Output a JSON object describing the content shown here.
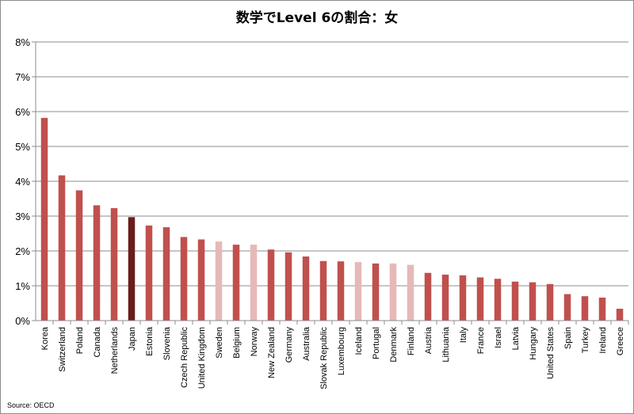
{
  "chart_data": {
    "type": "bar",
    "title": "数学でLevel 6の割合：女",
    "xlabel": "",
    "ylabel": "",
    "ylim": [
      0,
      8
    ],
    "y_tick_labels": [
      "0%",
      "1%",
      "2%",
      "3%",
      "4%",
      "5%",
      "6%",
      "7%",
      "8%"
    ],
    "y_unit": "%",
    "grid": true,
    "legend": "none",
    "categories": [
      "Korea",
      "Switzerland",
      "Poland",
      "Canada",
      "Netherlands",
      "Japan",
      "Estonia",
      "Slovenia",
      "Czech Republic",
      "United Kingdom",
      "Sweden",
      "Belgium",
      "Norway",
      "New Zealand",
      "Germany",
      "Australia",
      "Slovak Republic",
      "Luxembourg",
      "Iceland",
      "Portugal",
      "Denmark",
      "Finland",
      "Austria",
      "Lithuania",
      "Italy",
      "France",
      "Israel",
      "Latvia",
      "Hungary",
      "United States",
      "Spain",
      "Turkey",
      "Ireland",
      "Greece"
    ],
    "values": [
      5.82,
      4.17,
      3.74,
      3.31,
      3.23,
      2.97,
      2.73,
      2.68,
      2.4,
      2.33,
      2.27,
      2.18,
      2.18,
      2.04,
      1.96,
      1.84,
      1.71,
      1.7,
      1.68,
      1.64,
      1.64,
      1.6,
      1.37,
      1.32,
      1.3,
      1.24,
      1.2,
      1.12,
      1.1,
      1.05,
      0.76,
      0.7,
      0.66,
      0.34
    ],
    "bar_colors": [
      "#c0504d",
      "#c0504d",
      "#c0504d",
      "#c0504d",
      "#c0504d",
      "#6b1c1d",
      "#c0504d",
      "#c0504d",
      "#c0504d",
      "#c0504d",
      "#e6b9b8",
      "#c0504d",
      "#e6b9b8",
      "#c0504d",
      "#c0504d",
      "#c0504d",
      "#c0504d",
      "#c0504d",
      "#e6b9b8",
      "#c0504d",
      "#e6b9b8",
      "#e6b9b8",
      "#c0504d",
      "#c0504d",
      "#c0504d",
      "#c0504d",
      "#c0504d",
      "#c0504d",
      "#c0504d",
      "#c0504d",
      "#c0504d",
      "#c0504d",
      "#c0504d",
      "#c0504d"
    ]
  },
  "source_text": "Source: OECD",
  "colors": {
    "bar_default": "#c0504d",
    "bar_japan": "#6b1c1d",
    "bar_nordic": "#e6b9b8",
    "gridline": "#8c8c8c",
    "axis": "#8c8c8c"
  }
}
